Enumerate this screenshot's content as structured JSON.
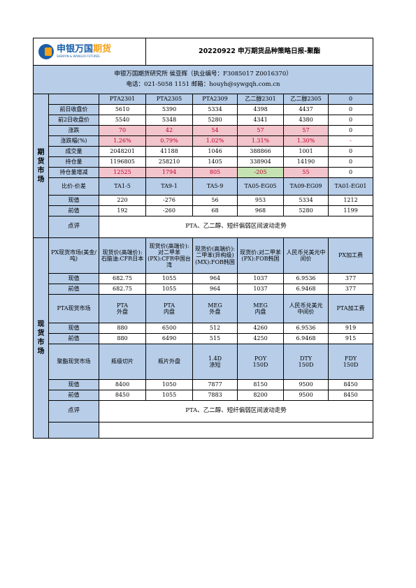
{
  "header": {
    "logo_cn": "申银万国",
    "logo_cn_highlight": "期货",
    "logo_en": "SHENYIN & WANGUO FUTURES",
    "title": "20220922 申万期货品种策略日报-聚酯",
    "org_line": "申银万国期货研究所 侯亚辉（执业编号：F3085017 Z0016370）",
    "contact_line": "电话：021-5058 1151 邮箱：houyh@sywgqh.com.cn"
  },
  "futures": {
    "section_label": "期货市场",
    "columns": [
      "",
      "PTA2301",
      "PTA2305",
      "PTA2309",
      "乙二醇2301",
      "乙二醇2305",
      "0"
    ],
    "rows": [
      {
        "label": "前日收盘价",
        "values": [
          "5610",
          "5390",
          "5334",
          "4398",
          "4437",
          "0"
        ]
      },
      {
        "label": "前2日收盘价",
        "values": [
          "5540",
          "5348",
          "5280",
          "4341",
          "4380",
          "0"
        ]
      },
      {
        "label": "涨跌",
        "values": [
          "70",
          "42",
          "54",
          "57",
          "57",
          "0"
        ]
      },
      {
        "label": "涨跌幅(%)",
        "values": [
          "1.26%",
          "0.79%",
          "1.02%",
          "1.31%",
          "1.30%",
          "-"
        ]
      },
      {
        "label": "成交量",
        "values": [
          "2048201",
          "41188",
          "1046",
          "388866",
          "1001",
          "0"
        ]
      },
      {
        "label": "持仓量",
        "values": [
          "1196805",
          "258210",
          "1405",
          "338904",
          "14190",
          "0"
        ]
      },
      {
        "label": "持仓量增减",
        "values": [
          "12525",
          "1794",
          "805",
          "-205",
          "55",
          "0"
        ]
      }
    ],
    "spread_header": [
      "比价-价差",
      "TA1-5",
      "TA9-1",
      "TA5-9",
      "TA05-EG05",
      "TA09-EG09",
      "TA01-EG01"
    ],
    "spread_rows": [
      {
        "label": "现值",
        "values": [
          "220",
          "-276",
          "56",
          "953",
          "5334",
          "1212"
        ]
      },
      {
        "label": "前值",
        "values": [
          "192",
          "-260",
          "68",
          "968",
          "5280",
          "1199"
        ]
      }
    ],
    "comment_label": "点评",
    "comment": "PTA、乙二醇、短纤偏弱区间波动走势"
  },
  "spot": {
    "section_label": "现货市场",
    "px_header": [
      "PX现货市场(美金/吨)",
      "现货价(高端价):石脑油:CFR日本",
      "现货价(高端价):对二甲苯(PX):CFR中国台湾",
      "现货价(高端价):二甲苯(异构级)(MX):FOB韩国",
      "现货价:对二甲苯(PX):FOB韩国",
      "人民币兑美元中间价",
      "PX加工费"
    ],
    "px_rows": [
      {
        "label": "现值",
        "values": [
          "682.75",
          "1055",
          "964",
          "1037",
          "6.9536",
          "377"
        ]
      },
      {
        "label": "前值",
        "values": [
          "682.75",
          "1055",
          "964",
          "1037",
          "6.9468",
          "377"
        ]
      }
    ],
    "pta_header": [
      "PTA现货市场",
      "PTA\n外盘",
      "PTA\n内盘",
      "MEG\n外盘",
      "MEG\n内盘",
      "人民币兑美元\n中间价",
      "PTA加工费"
    ],
    "pta_rows": [
      {
        "label": "现值",
        "values": [
          "880",
          "6500",
          "512",
          "4260",
          "6.9536",
          "919"
        ]
      },
      {
        "label": "前值",
        "values": [
          "880",
          "6490",
          "515",
          "4250",
          "6.9468",
          "915"
        ]
      }
    ],
    "poly_header": [
      "聚酯现货市场",
      "瓶级切片",
      "瓶片外盘",
      "1.4D\n涤短",
      "POY\n150D",
      "DTY\n150D",
      "FDY\n150D"
    ],
    "poly_rows": [
      {
        "label": "现值",
        "values": [
          "8400",
          "1050",
          "7877",
          "8150",
          "9500",
          "8450"
        ]
      },
      {
        "label": "前值",
        "values": [
          "8450",
          "1055",
          "7883",
          "8200",
          "9500",
          "8450"
        ]
      }
    ],
    "comment_label": "点评",
    "comment": "PTA、乙二醇、短纤偏弱区间波动走势"
  },
  "colors": {
    "header_blue": "#b7cde8",
    "up_pink": "#f2c4cc",
    "down_green": "#c5e2b3",
    "text_red": "#c0002b",
    "brand_blue": "#1a5ea8",
    "brand_orange": "#f3a21a"
  }
}
